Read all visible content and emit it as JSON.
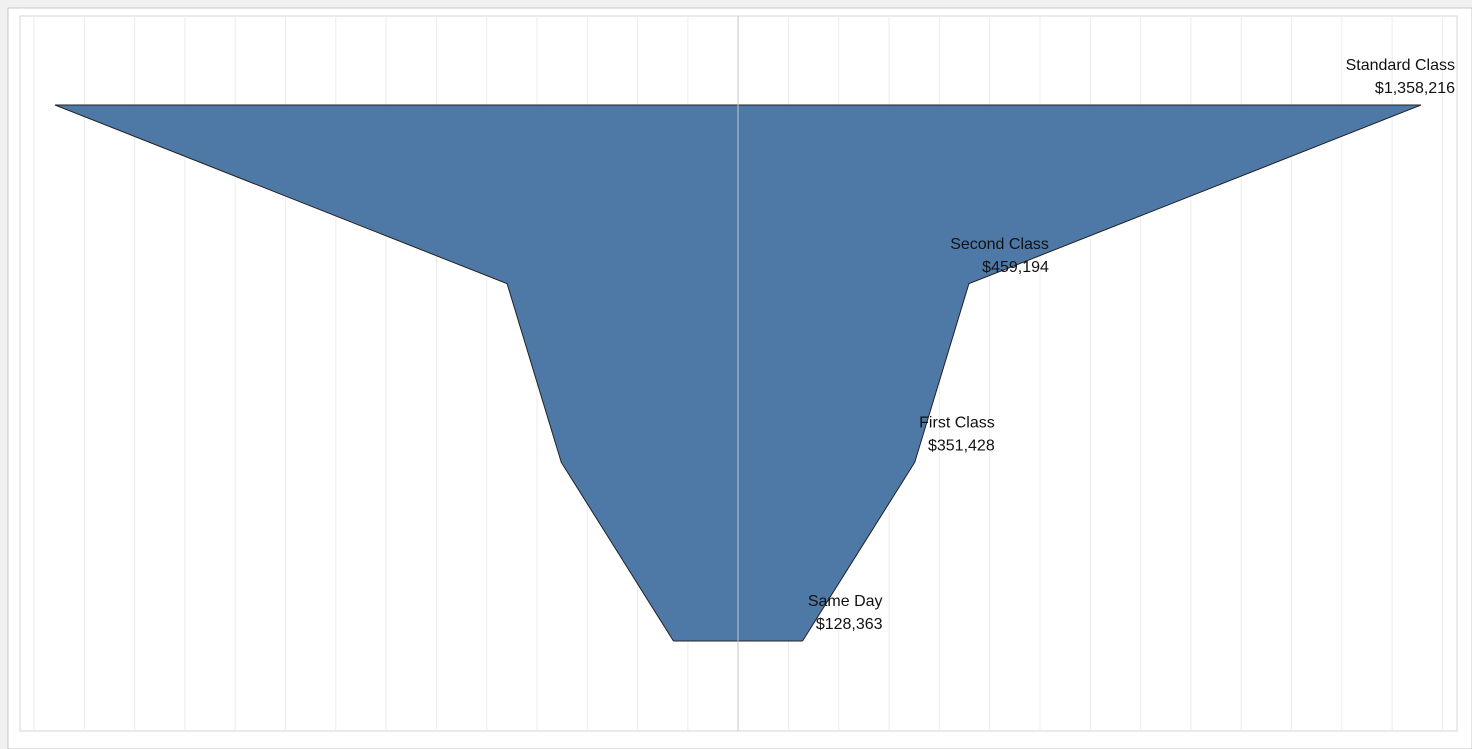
{
  "chart_data": {
    "type": "funnel",
    "categories": [
      "Standard Class",
      "Second Class",
      "First Class",
      "Same Day"
    ],
    "values": [
      1358216,
      459194,
      351428,
      128363
    ],
    "value_labels": [
      "$1,358,216",
      "$459,194",
      "$351,428",
      "$128,363"
    ],
    "color": "#4e79a7",
    "grid": true
  }
}
